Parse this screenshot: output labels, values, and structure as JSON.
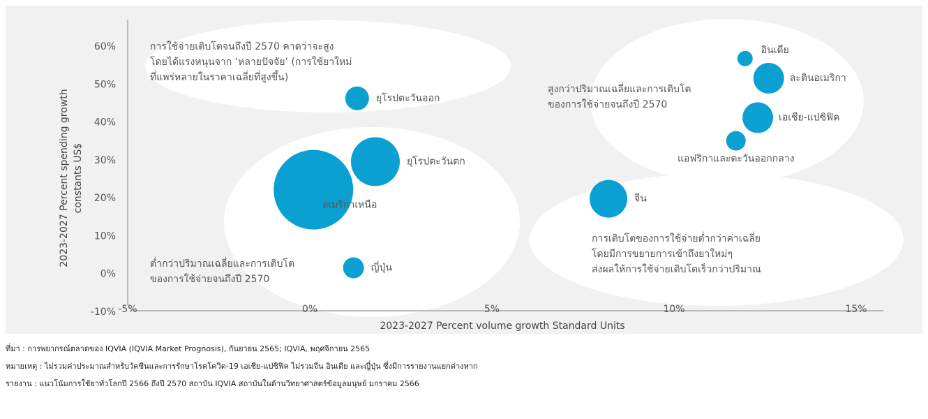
{
  "chart_data": {
    "type": "scatter",
    "x_label": "2023-2027 Percent volume growth Standard Units",
    "y_label": [
      "2023-2027 Percent spending growth",
      "constants US$"
    ],
    "xlim": [
      -5,
      15
    ],
    "xticks": [
      {
        "value": -5,
        "label": "-5%"
      },
      {
        "value": 0,
        "label": "0%"
      },
      {
        "value": 5,
        "label": "5%"
      },
      {
        "value": 10,
        "label": "10%"
      },
      {
        "value": 15,
        "label": "15%"
      }
    ],
    "ylim": [
      -10,
      60
    ],
    "yticks": [
      {
        "value": -10,
        "label": "-10%"
      },
      {
        "value": 0,
        "label": "0%"
      },
      {
        "value": 10,
        "label": "10%"
      },
      {
        "value": 20,
        "label": "20%"
      },
      {
        "value": 30,
        "label": "30%"
      },
      {
        "value": 40,
        "label": "40%"
      },
      {
        "value": 50,
        "label": "50%"
      },
      {
        "value": 60,
        "label": "60%"
      }
    ],
    "color": "#0aa0d2",
    "series": [
      {
        "name": null,
        "labels": [
          "อินเดีย",
          "ละตินอเมริกา",
          "เอเชีย-แปซิฟิค",
          "แอฟริกาและตะวันออกกลาง",
          "จีน",
          "ยุโรปตะวันออก",
          "ยุโรปตะวันตก",
          "อเมริกาเหนือ",
          "ญี่ปุ่น"
        ],
        "x": [
          11.95,
          12.6,
          12.3,
          11.7,
          8.2,
          1.3,
          1.8,
          0.1,
          1.2
        ],
        "values": [
          56.9,
          51.7,
          41.3,
          35.2,
          19.9,
          46.4,
          29.7,
          22.3,
          1.7
        ],
        "sizes": [
          3.7,
          14.9,
          14.9,
          6.0,
          22.4,
          8.9,
          37.7,
          100,
          6.9
        ]
      }
    ],
    "annotations": [
      [
        "การใช้จ่ายเติบโตจนถึงปี 2570 คาดว่าจะสูง",
        "โดยได้แรงหนุนจาก ‘หลายปัจจัย’ (การใช้ยาใหม่",
        "ที่แพร่หลายในราคาเฉลี่ยที่สูงขึ้น)"
      ],
      [
        "สูงกว่าปริมาณเฉลี่ยและการเติบโต",
        "ของการใช้จ่ายจนถึงปี 2570"
      ],
      [
        "ต่ำกว่าปริมาณเฉลี่ยและการเติบโต",
        "ของการใช้จ่ายจนถึงปี 2570"
      ],
      [
        "การเติบโตของการใช้จ่ายต่ำกว่าค่าเฉลี่ย",
        "โดยมีการขยายการเข้าถึงยาใหม่ๆ",
        "ส่งผลให้การใช้จ่ายเติบโตเร็วกว่าปริมาณ"
      ]
    ]
  },
  "footnotes": [
    "ที่มา : การพยากรณ์ตลาดของ IQVIA (IQVIA Market Prognosis), กันยายน 2565; IQVIA, พฤศจิกายน 2565",
    "หมายเหตุ : ไม่รวมค่าประมาณสำหรับวัคซีนและการรักษาโรคโควิด-19 เอเชีย-แปซิฟิค ไม่รวมจีน อินเดีย และญี่ปุ่น ซึ่งมีการรายงานแยกต่างหาก",
    "รายงาน : แนวโน้มการใช้ยาทั่วโลกปี 2566 ถึงปี 2570 สถาบัน IQVIA สถาบันในด้านวิทยาศาสตร์ข้อมูลมนุษย์ มกราคม 2566"
  ]
}
